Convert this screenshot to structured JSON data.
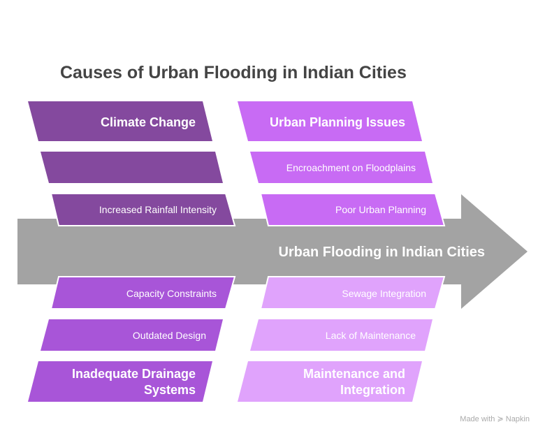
{
  "title": "Causes of Urban Flooding in Indian Cities",
  "spine_label": "Urban Flooding in Indian Cities",
  "colors": {
    "spine": "#A3A3A3",
    "climate": "#84499E",
    "planning": "#C86BF4",
    "drainage": "#A855D8",
    "maintenance": "#E0A3FC"
  },
  "categories": [
    {
      "name": "Climate Change",
      "causes": [
        "",
        "Increased Rainfall Intensity"
      ]
    },
    {
      "name": "Urban Planning Issues",
      "causes": [
        "Encroachment on Floodplains",
        "Poor Urban Planning"
      ]
    },
    {
      "name_lines": [
        "Inadequate Drainage",
        "Systems"
      ],
      "causes": [
        "Capacity Constraints",
        "Outdated Design"
      ]
    },
    {
      "name_lines": [
        "Maintenance and",
        "Integration"
      ],
      "causes": [
        "Sewage Integration",
        "Lack of Maintenance"
      ]
    }
  ],
  "watermark": "Made with ≽ Napkin"
}
